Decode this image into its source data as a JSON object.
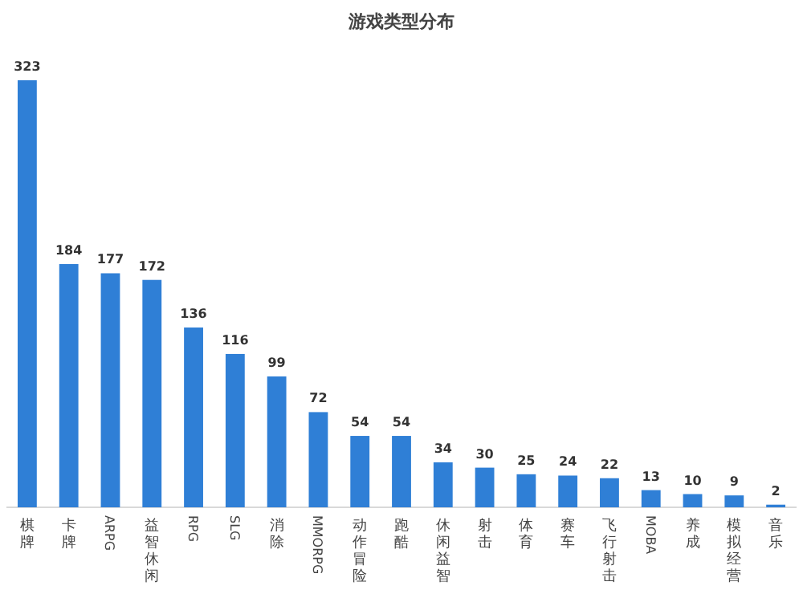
{
  "chart_data": {
    "type": "bar",
    "title": "游戏类型分布",
    "categories": [
      "棋牌",
      "卡牌",
      "ARPG",
      "益智休闲",
      "RPG",
      "SLG",
      "消除",
      "MMORPG",
      "动作冒险",
      "跑酷",
      "休闲益智",
      "射击",
      "体育",
      "赛车",
      "飞行射击",
      "MOBA",
      "养成",
      "模拟经营",
      "音乐"
    ],
    "values": [
      323,
      184,
      177,
      172,
      136,
      116,
      99,
      72,
      54,
      54,
      34,
      30,
      25,
      24,
      22,
      13,
      10,
      9,
      2
    ],
    "color": "#2f7fd6",
    "data_labels": true
  }
}
